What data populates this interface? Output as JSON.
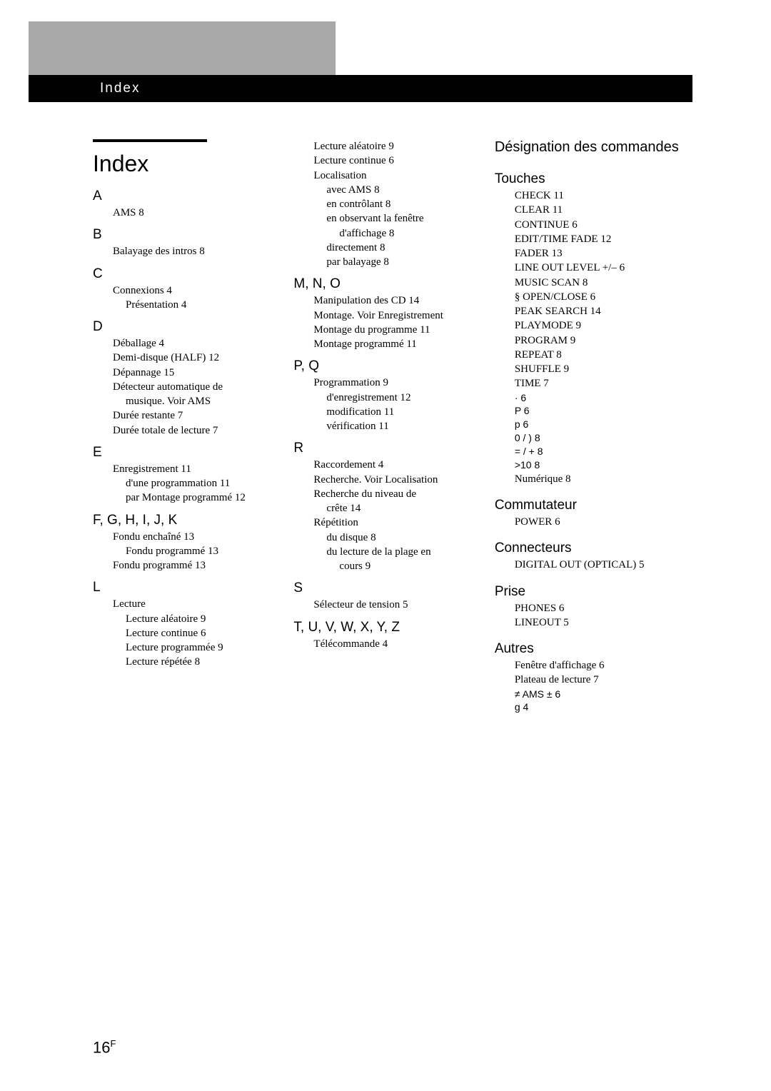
{
  "header": {
    "tab_label": "Index"
  },
  "main_title": "Index",
  "page_number": "16",
  "page_number_suffix": "F",
  "col1": {
    "A": {
      "letter": "A",
      "items": [
        {
          "t": "AMS    8"
        }
      ]
    },
    "B": {
      "letter": "B",
      "items": [
        {
          "t": "Balayage des intros    8"
        }
      ]
    },
    "C": {
      "letter": "C",
      "items": [
        {
          "t": "Connexions    4"
        },
        {
          "t": "Présentation    4",
          "sub": true
        }
      ]
    },
    "D": {
      "letter": "D",
      "items": [
        {
          "t": "Déballage    4"
        },
        {
          "t": "Demi-disque (HALF)    12"
        },
        {
          "t": "Dépannage    15"
        },
        {
          "t": "Détecteur automatique de"
        },
        {
          "t": "musique. Voir AMS",
          "sub": true
        },
        {
          "t": "Durée restante    7"
        },
        {
          "t": "Durée totale de lecture    7"
        }
      ]
    },
    "E": {
      "letter": "E",
      "items": [
        {
          "t": "Enregistrement    11"
        },
        {
          "t": "d'une programmation    11",
          "sub": true
        },
        {
          "t": "par Montage programmé    12",
          "sub": true
        }
      ]
    },
    "F": {
      "letter": "F, G, H, I, J, K",
      "items": [
        {
          "t": "Fondu enchaîné    13"
        },
        {
          "t": "Fondu programmé    13",
          "sub": true
        },
        {
          "t": "Fondu programmé    13"
        }
      ]
    },
    "L": {
      "letter": "L",
      "items": [
        {
          "t": "Lecture"
        },
        {
          "t": "Lecture aléatoire    9",
          "sub": true
        },
        {
          "t": "Lecture continue    6",
          "sub": true
        },
        {
          "t": "Lecture programmée    9",
          "sub": true
        },
        {
          "t": "Lecture répétée    8",
          "sub": true
        }
      ]
    }
  },
  "col2": {
    "cont": {
      "items": [
        {
          "t": "Lecture aléatoire    9"
        },
        {
          "t": "Lecture continue    6"
        },
        {
          "t": "Localisation"
        },
        {
          "t": "avec AMS    8",
          "sub": true
        },
        {
          "t": "en contrôlant    8",
          "sub": true
        },
        {
          "t": "en observant la fenêtre",
          "sub": true
        },
        {
          "t": "d'affichage    8",
          "sub2": true
        },
        {
          "t": "directement    8",
          "sub": true
        },
        {
          "t": "par balayage    8",
          "sub": true
        }
      ]
    },
    "M": {
      "letter": "M, N, O",
      "items": [
        {
          "t": "Manipulation des CD    14"
        },
        {
          "t": "Montage. Voir Enregistrement"
        },
        {
          "t": "Montage du programme    11"
        },
        {
          "t": "Montage programmé    11"
        }
      ]
    },
    "P": {
      "letter": "P, Q",
      "items": [
        {
          "t": "Programmation    9"
        },
        {
          "t": "d'enregistrement    12",
          "sub": true
        },
        {
          "t": "modification    11",
          "sub": true
        },
        {
          "t": "vérification    11",
          "sub": true
        }
      ]
    },
    "R": {
      "letter": "R",
      "items": [
        {
          "t": "Raccordement    4"
        },
        {
          "t": "Recherche. Voir Localisation"
        },
        {
          "t": "Recherche du niveau de"
        },
        {
          "t": "crête    14",
          "sub": true
        },
        {
          "t": "Répétition"
        },
        {
          "t": "du disque    8",
          "sub": true
        },
        {
          "t": "du lecture de la plage en",
          "sub": true
        },
        {
          "t": "cours    9",
          "sub2": true
        }
      ]
    },
    "S": {
      "letter": "S",
      "items": [
        {
          "t": "Sélecteur de tension    5"
        }
      ]
    },
    "T": {
      "letter": "T, U, V, W, X, Y, Z",
      "items": [
        {
          "t": "Télécommande    4"
        }
      ]
    }
  },
  "col3": {
    "designation": "Désignation des commandes",
    "touches": {
      "title": "Touches",
      "items": [
        {
          "t": "CHECK    11"
        },
        {
          "t": "CLEAR    11"
        },
        {
          "t": "CONTINUE    6"
        },
        {
          "t": "EDIT/TIME FADE    12"
        },
        {
          "t": "FADER    13"
        },
        {
          "t": "LINE OUT LEVEL +/–    6"
        },
        {
          "t": "MUSIC SCAN    8"
        },
        {
          "t": "§ OPEN/CLOSE    6"
        },
        {
          "t": "PEAK SEARCH    14"
        },
        {
          "t": "PLAYMODE    9"
        },
        {
          "t": "PROGRAM    9"
        },
        {
          "t": "REPEAT    8"
        },
        {
          "t": "SHUFFLE    9"
        },
        {
          "t": "TIME    7"
        },
        {
          "t": "·       6",
          "sym": true
        },
        {
          "t": "P     6",
          "sym": true
        },
        {
          "t": "p     6",
          "sym": true
        },
        {
          "t": "0  /  )        8",
          "sym": true
        },
        {
          "t": "=  /  +        8",
          "sym": true
        },
        {
          "t": ">10    8",
          "sym": true
        },
        {
          "t": "Numérique    8"
        }
      ]
    },
    "commutateur": {
      "title": "Commutateur",
      "items": [
        {
          "t": "POWER    6"
        }
      ]
    },
    "connecteurs": {
      "title": "Connecteurs",
      "items": [
        {
          "t": "DIGITAL OUT (OPTICAL)    5"
        }
      ]
    },
    "prise": {
      "title": "Prise",
      "items": [
        {
          "t": "PHONES    6"
        },
        {
          "t": "LINEOUT    5"
        }
      ]
    },
    "autres": {
      "title": "Autres",
      "items": [
        {
          "t": "Fenêtre d'affichage    6"
        },
        {
          "t": "Plateau de lecture    7"
        },
        {
          "t": "≠   AMS   ±        6",
          "sym": true
        },
        {
          "t": "g     4",
          "sym": true
        }
      ]
    }
  }
}
